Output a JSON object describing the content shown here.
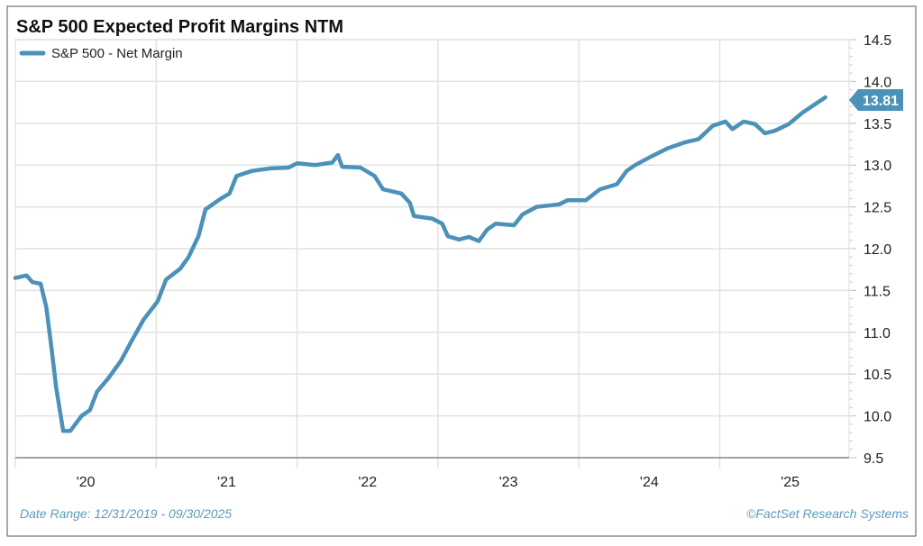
{
  "chart_data": {
    "type": "line",
    "title": "S&P 500 Expected Profit Margins NTM",
    "legend": [
      "S&P 500 - Net Margin"
    ],
    "legend_position": "top-left",
    "xlabel": "",
    "ylabel": "",
    "xlim": [
      2020.0,
      2025.95
    ],
    "ylim": [
      9.5,
      14.5
    ],
    "y_ticks": [
      "9.5",
      "10.0",
      "10.5",
      "11.0",
      "11.5",
      "12.0",
      "12.5",
      "13.0",
      "13.5",
      "14.0",
      "14.5"
    ],
    "x_ticks": [
      "'20",
      "'21",
      "'22",
      "'23",
      "'24",
      "'25"
    ],
    "grid": true,
    "last_value_label": "13.81",
    "footer_left": "Date Range: 12/31/2019 - 09/30/2025",
    "footer_right": "©FactSet Research Systems",
    "colors": {
      "line": "#4b91b8",
      "footer": "#5b9bbf"
    },
    "series": [
      {
        "name": "S&P 500 - Net Margin",
        "x": [
          2020.0,
          2020.08,
          2020.12,
          2020.18,
          2020.22,
          2020.26,
          2020.29,
          2020.34,
          2020.39,
          2020.47,
          2020.53,
          2020.58,
          2020.66,
          2020.75,
          2020.82,
          2020.91,
          2021.01,
          2021.07,
          2021.17,
          2021.23,
          2021.3,
          2021.35,
          2021.46,
          2021.52,
          2021.57,
          2021.68,
          2021.81,
          2021.94,
          2022.0,
          2022.13,
          2022.25,
          2022.29,
          2022.32,
          2022.45,
          2022.55,
          2022.61,
          2022.74,
          2022.8,
          2022.83,
          2022.96,
          2023.03,
          2023.07,
          2023.15,
          2023.22,
          2023.29,
          2023.35,
          2023.41,
          2023.54,
          2023.6,
          2023.7,
          2023.86,
          2023.92,
          2024.05,
          2024.15,
          2024.27,
          2024.34,
          2024.4,
          2024.5,
          2024.63,
          2024.75,
          2024.85,
          2024.95,
          2025.04,
          2025.09,
          2025.17,
          2025.25,
          2025.32,
          2025.39,
          2025.49,
          2025.59,
          2025.75
        ],
        "values": [
          11.65,
          11.68,
          11.6,
          11.58,
          11.3,
          10.77,
          10.34,
          9.82,
          9.82,
          10.0,
          10.07,
          10.29,
          10.45,
          10.66,
          10.88,
          11.15,
          11.37,
          11.63,
          11.76,
          11.9,
          12.15,
          12.47,
          12.6,
          12.66,
          12.87,
          12.93,
          12.96,
          12.97,
          13.02,
          13.0,
          13.03,
          13.12,
          12.98,
          12.97,
          12.87,
          12.71,
          12.66,
          12.55,
          12.39,
          12.36,
          12.3,
          12.15,
          12.11,
          12.14,
          12.09,
          12.23,
          12.3,
          12.28,
          12.41,
          12.5,
          12.53,
          12.58,
          12.58,
          12.71,
          12.77,
          12.93,
          13.0,
          13.09,
          13.2,
          13.27,
          13.31,
          13.47,
          13.52,
          13.43,
          13.52,
          13.49,
          13.38,
          13.41,
          13.49,
          13.63,
          13.81
        ]
      }
    ]
  }
}
